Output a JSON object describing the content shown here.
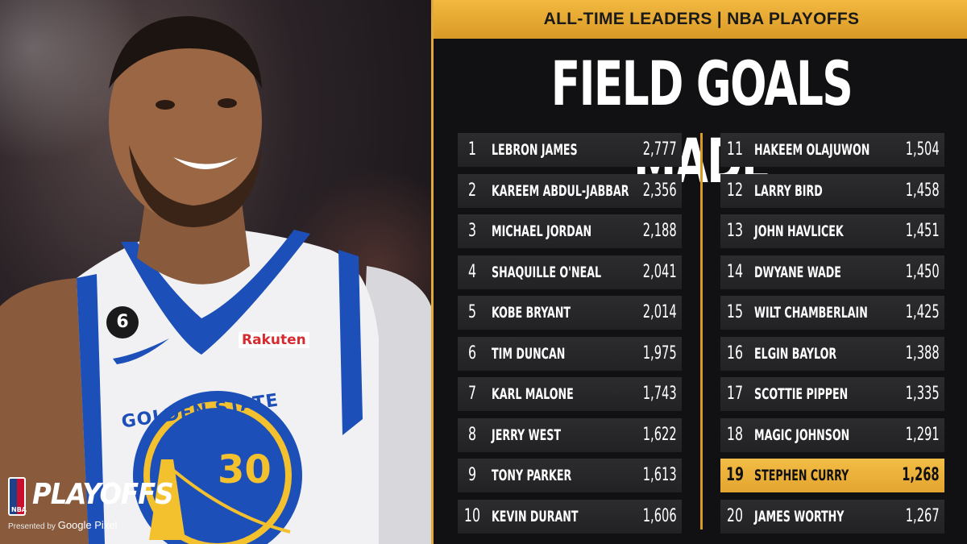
{
  "header": "ALL-TIME LEADERS | NBA PLAYOFFS",
  "title": "FIELD GOALS MADE",
  "brand": {
    "word": "PLAYOFFS",
    "presented": "Presented by",
    "sponsor": "Google Pixel",
    "nba": "NBA"
  },
  "jersey": {
    "team": "GOLDEN STATE",
    "number": "30",
    "patch": "6",
    "sponsor": "Rakuten"
  },
  "colors": {
    "accent": "#e3a52f",
    "row": "#262629",
    "background": "#111113"
  },
  "leaders_left": [
    {
      "rank": "1",
      "name": "LEBRON JAMES",
      "value": "2,777"
    },
    {
      "rank": "2",
      "name": "KAREEM ABDUL-JABBAR",
      "value": "2,356"
    },
    {
      "rank": "3",
      "name": "MICHAEL JORDAN",
      "value": "2,188"
    },
    {
      "rank": "4",
      "name": "SHAQUILLE O'NEAL",
      "value": "2,041"
    },
    {
      "rank": "5",
      "name": "KOBE BRYANT",
      "value": "2,014"
    },
    {
      "rank": "6",
      "name": "TIM DUNCAN",
      "value": "1,975"
    },
    {
      "rank": "7",
      "name": "KARL MALONE",
      "value": "1,743"
    },
    {
      "rank": "8",
      "name": "JERRY WEST",
      "value": "1,622"
    },
    {
      "rank": "9",
      "name": "TONY PARKER",
      "value": "1,613"
    },
    {
      "rank": "10",
      "name": "KEVIN DURANT",
      "value": "1,606"
    }
  ],
  "leaders_right": [
    {
      "rank": "11",
      "name": "HAKEEM OLAJUWON",
      "value": "1,504"
    },
    {
      "rank": "12",
      "name": "LARRY BIRD",
      "value": "1,458"
    },
    {
      "rank": "13",
      "name": "JOHN HAVLICEK",
      "value": "1,451"
    },
    {
      "rank": "14",
      "name": "DWYANE WADE",
      "value": "1,450"
    },
    {
      "rank": "15",
      "name": "WILT CHAMBERLAIN",
      "value": "1,425"
    },
    {
      "rank": "16",
      "name": "ELGIN BAYLOR",
      "value": "1,388"
    },
    {
      "rank": "17",
      "name": "SCOTTIE PIPPEN",
      "value": "1,335"
    },
    {
      "rank": "18",
      "name": "MAGIC JOHNSON",
      "value": "1,291"
    },
    {
      "rank": "19",
      "name": "STEPHEN CURRY",
      "value": "1,268",
      "highlight": true
    },
    {
      "rank": "20",
      "name": "JAMES WORTHY",
      "value": "1,267"
    }
  ]
}
